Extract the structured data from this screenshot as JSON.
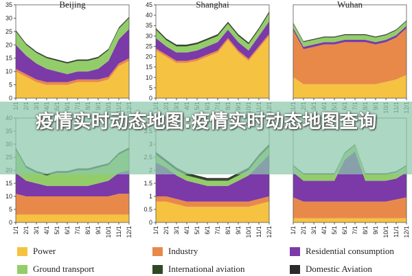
{
  "colors": {
    "Power": "#f5c242",
    "Industry": "#e8894a",
    "Residential consumption": "#7b3aa8",
    "Ground transport": "#93cd6a",
    "International aviation": "#2e4a22",
    "Domestic Aviation": "#2b2b2b"
  },
  "banner": {
    "text": "疫情实时动态地图:疫情实时动态地图查询"
  },
  "legend": [
    {
      "name": "Power"
    },
    {
      "name": "Industry"
    },
    {
      "name": "Residential consumption"
    },
    {
      "name": "Ground transport"
    },
    {
      "name": "International aviation"
    },
    {
      "name": "Domestic Aviation"
    }
  ],
  "chart_data": [
    {
      "type": "area",
      "title": "Beijing",
      "x": [
        "1/1",
        "2/1",
        "3/1",
        "4/1",
        "5/1",
        "6/1",
        "7/1",
        "8/1",
        "9/1",
        "10/1",
        "11/1",
        "12/1"
      ],
      "ylim": [
        0,
        35
      ],
      "yticks": [
        0,
        5,
        10,
        15,
        20,
        25,
        30,
        35
      ],
      "series": [
        {
          "name": "Power",
          "values": [
            10,
            8,
            6,
            5,
            5,
            5,
            6,
            6,
            6,
            7,
            12,
            14
          ]
        },
        {
          "name": "Industry",
          "values": [
            1,
            1,
            1,
            1,
            1,
            1,
            1,
            1,
            1,
            1,
            1,
            1
          ]
        },
        {
          "name": "Residential consumption",
          "values": [
            9,
            7,
            6,
            5,
            4,
            3,
            3,
            3,
            4,
            6,
            9,
            11
          ]
        },
        {
          "name": "Ground transport",
          "values": [
            5,
            4,
            4,
            4,
            4,
            4,
            4,
            4,
            4,
            4,
            4,
            4
          ]
        },
        {
          "name": "International aviation",
          "values": [
            0.3,
            0.3,
            0.3,
            0.3,
            0.3,
            0.3,
            0.3,
            0.3,
            0.3,
            0.3,
            0.3,
            0.3
          ]
        },
        {
          "name": "Domestic Aviation",
          "values": [
            0.2,
            0.2,
            0.2,
            0.2,
            0.2,
            0.2,
            0.2,
            0.2,
            0.2,
            0.2,
            0.2,
            0.2
          ]
        }
      ]
    },
    {
      "type": "area",
      "title": "Shanghai",
      "x": [
        "1/1",
        "2/1",
        "3/1",
        "4/1",
        "5/1",
        "6/1",
        "7/1",
        "8/1",
        "9/1",
        "10/1",
        "11/1",
        "12/1"
      ],
      "ylim": [
        0,
        45
      ],
      "yticks": [
        0,
        5,
        10,
        15,
        20,
        25,
        30,
        35,
        40,
        45
      ],
      "series": [
        {
          "name": "Power",
          "values": [
            23,
            20,
            17,
            17,
            18,
            20,
            22,
            28,
            22,
            18,
            24,
            30
          ]
        },
        {
          "name": "Industry",
          "values": [
            1,
            1,
            1,
            1,
            1,
            1,
            1,
            1,
            1,
            1,
            1,
            1
          ]
        },
        {
          "name": "Residential consumption",
          "values": [
            5,
            4,
            4,
            4,
            4,
            4,
            4,
            4,
            4,
            4,
            5,
            6
          ]
        },
        {
          "name": "Ground transport",
          "values": [
            4,
            3,
            3,
            3,
            3,
            3,
            3,
            3,
            3,
            3,
            3,
            4
          ]
        },
        {
          "name": "International aviation",
          "values": [
            0.5,
            0.5,
            0.5,
            0.5,
            0.5,
            0.5,
            0.5,
            0.5,
            0.5,
            0.5,
            0.5,
            0.5
          ]
        },
        {
          "name": "Domestic Aviation",
          "values": [
            0.3,
            0.3,
            0.3,
            0.3,
            0.3,
            0.3,
            0.3,
            0.3,
            0.3,
            0.3,
            0.3,
            0.3
          ]
        }
      ]
    },
    {
      "type": "area",
      "title": "Wuhan",
      "x": [
        "1/1",
        "2/1",
        "3/1",
        "4/1",
        "5/1",
        "6/1",
        "7/1",
        "8/1",
        "9/1",
        "10/1",
        "11/1",
        "12/1"
      ],
      "yticks": [],
      "ylim": [
        0,
        40
      ],
      "series": [
        {
          "name": "Power",
          "values": [
            9,
            6,
            6,
            6,
            6,
            6,
            6,
            6,
            6,
            7,
            8,
            10
          ]
        },
        {
          "name": "Industry",
          "values": [
            20,
            15,
            16,
            17,
            17,
            18,
            18,
            18,
            17,
            17,
            18,
            20
          ]
        },
        {
          "name": "Residential consumption",
          "values": [
            1,
            1,
            1,
            1,
            1,
            1,
            1,
            1,
            1,
            1,
            1,
            1
          ]
        },
        {
          "name": "Ground transport",
          "values": [
            2,
            2,
            2,
            2,
            2,
            2,
            2,
            2,
            2,
            2,
            2,
            2
          ]
        },
        {
          "name": "International aviation",
          "values": [
            0.2,
            0.2,
            0.2,
            0.2,
            0.2,
            0.2,
            0.2,
            0.2,
            0.2,
            0.2,
            0.2,
            0.2
          ]
        },
        {
          "name": "Domestic Aviation",
          "values": [
            0.2,
            0.2,
            0.2,
            0.2,
            0.2,
            0.2,
            0.2,
            0.2,
            0.2,
            0.2,
            0.2,
            0.2
          ]
        }
      ]
    },
    {
      "type": "area",
      "title": "",
      "x": [
        "1/1",
        "2/1",
        "3/1",
        "4/1",
        "5/1",
        "6/1",
        "7/1",
        "8/1",
        "9/1",
        "10/1",
        "11/1",
        "12/1"
      ],
      "ylim": [
        0,
        40
      ],
      "yticks": [
        0,
        5,
        10,
        15,
        20,
        25,
        30,
        35,
        40
      ],
      "series": [
        {
          "name": "Power",
          "values": [
            3,
            3,
            3,
            3,
            3,
            3,
            3,
            3,
            3,
            3,
            3,
            3
          ]
        },
        {
          "name": "Industry",
          "values": [
            8,
            7,
            7,
            7,
            7,
            7,
            7,
            7,
            7,
            7,
            8,
            8
          ]
        },
        {
          "name": "Residential consumption",
          "values": [
            8,
            6,
            5,
            4,
            4,
            4,
            4,
            4,
            5,
            6,
            8,
            9
          ]
        },
        {
          "name": "Ground transport",
          "values": [
            9,
            5,
            4,
            4,
            5,
            5,
            6,
            6,
            6,
            6,
            7,
            8
          ]
        },
        {
          "name": "International aviation",
          "values": [
            0.5,
            0.5,
            0.5,
            0.5,
            0.5,
            0.5,
            0.5,
            0.5,
            0.5,
            0.5,
            0.5,
            0.5
          ]
        },
        {
          "name": "Domestic Aviation",
          "values": [
            0.2,
            0.2,
            0.2,
            0.2,
            0.2,
            0.2,
            0.2,
            0.2,
            0.2,
            0.2,
            0.2,
            0.2
          ]
        }
      ]
    },
    {
      "type": "area",
      "title": "",
      "x": [
        "1/1",
        "2/1",
        "3/1",
        "4/1",
        "5/1",
        "6/1",
        "7/1",
        "8/1",
        "9/1",
        "10/1",
        "11/1",
        "12/1"
      ],
      "ylim": [
        0,
        4
      ],
      "yticks": [
        0,
        0.5,
        1,
        1.5,
        2,
        2.5,
        3,
        3.5,
        4
      ],
      "series": [
        {
          "name": "Power",
          "values": [
            0.8,
            0.8,
            0.7,
            0.6,
            0.6,
            0.6,
            0.6,
            0.6,
            0.6,
            0.6,
            0.7,
            0.8
          ]
        },
        {
          "name": "Industry",
          "values": [
            0.2,
            0.2,
            0.2,
            0.2,
            0.2,
            0.2,
            0.2,
            0.2,
            0.2,
            0.2,
            0.2,
            0.2
          ]
        },
        {
          "name": "Residential consumption",
          "values": [
            1.3,
            1.1,
            0.9,
            0.8,
            0.7,
            0.6,
            0.6,
            0.6,
            0.8,
            1.0,
            1.3,
            1.6
          ]
        },
        {
          "name": "Ground transport",
          "values": [
            0.3,
            0.2,
            0.2,
            0.2,
            0.2,
            0.2,
            0.2,
            0.2,
            0.2,
            0.2,
            0.3,
            0.3
          ]
        },
        {
          "name": "International aviation",
          "values": [
            0.05,
            0.05,
            0.05,
            0.05,
            0.05,
            0.05,
            0.05,
            0.05,
            0.05,
            0.05,
            0.05,
            0.05
          ]
        },
        {
          "name": "Domestic Aviation",
          "values": [
            0.05,
            0.05,
            0.05,
            0.05,
            0.05,
            0.05,
            0.05,
            0.05,
            0.05,
            0.05,
            0.05,
            0.05
          ]
        }
      ]
    },
    {
      "type": "area",
      "title": "",
      "x": [
        "1/1",
        "2/1",
        "3/1",
        "4/1",
        "5/1",
        "6/1",
        "7/1",
        "8/1",
        "9/1",
        "10/1",
        "11/1",
        "12/1"
      ],
      "yticks": [],
      "ylim": [
        0,
        50
      ],
      "series": [
        {
          "name": "Power",
          "values": [
            2,
            2,
            2,
            2,
            2,
            2,
            2,
            2,
            2,
            2,
            2,
            2
          ]
        },
        {
          "name": "Industry",
          "values": [
            10,
            8,
            8,
            8,
            8,
            8,
            8,
            8,
            8,
            8,
            9,
            10
          ]
        },
        {
          "name": "Residential consumption",
          "values": [
            12,
            10,
            10,
            10,
            10,
            20,
            24,
            10,
            10,
            10,
            10,
            12
          ]
        },
        {
          "name": "Ground transport",
          "values": [
            3,
            3,
            3,
            3,
            3,
            3,
            3,
            3,
            3,
            3,
            3,
            3
          ]
        },
        {
          "name": "International aviation",
          "values": [
            0.3,
            0.3,
            0.3,
            0.3,
            0.3,
            0.3,
            0.3,
            0.3,
            0.3,
            0.3,
            0.3,
            0.3
          ]
        },
        {
          "name": "Domestic Aviation",
          "values": [
            0.2,
            0.2,
            0.2,
            0.2,
            0.2,
            0.2,
            0.2,
            0.2,
            0.2,
            0.2,
            0.2,
            0.2
          ]
        }
      ]
    }
  ]
}
